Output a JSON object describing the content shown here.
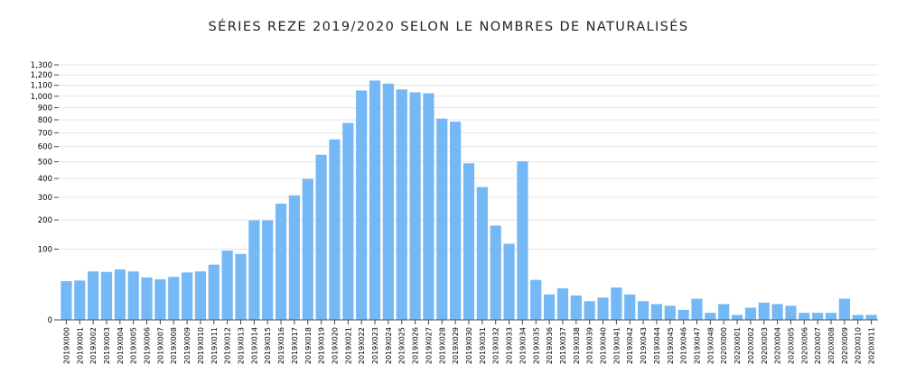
{
  "chart_data": {
    "type": "bar",
    "title": "SÉRIES REZE 2019/2020 SELON LE NOMBRES DE NATURALISÉS",
    "xlabel": "",
    "ylabel": "",
    "y_scale": "sqrt",
    "ylim": [
      0,
      1300
    ],
    "y_ticks": [
      0,
      100,
      200,
      300,
      400,
      500,
      600,
      700,
      800,
      900,
      1000,
      1100,
      1200,
      1300
    ],
    "y_tick_labels": [
      "0",
      "100",
      "200",
      "300",
      "400",
      "500",
      "600",
      "700",
      "800",
      "900",
      "1,000",
      "1,100",
      "1,200",
      "1,300"
    ],
    "grid": true,
    "bar_color": "#74b8f5",
    "categories": [
      "2019X000",
      "2019X001",
      "2019X002",
      "2019X003",
      "2019X004",
      "2019X005",
      "2019X006",
      "2019X007",
      "2019X008",
      "2019X009",
      "2019X010",
      "2019X011",
      "2019X012",
      "2019X013",
      "2019X014",
      "2019X015",
      "2019X016",
      "2019X017",
      "2019X018",
      "2019X019",
      "2019X020",
      "2019X021",
      "2019X022",
      "2019X023",
      "2019X024",
      "2019X025",
      "2019X026",
      "2019X027",
      "2019X028",
      "2019X029",
      "2019X030",
      "2019X031",
      "2019X032",
      "2019X033",
      "2019X034",
      "2019X035",
      "2019X036",
      "2019X037",
      "2019X038",
      "2019X039",
      "2019X040",
      "2019X041",
      "2019X042",
      "2019X043",
      "2019X044",
      "2019X045",
      "2019X046",
      "2019X047",
      "2019X048",
      "2020X000",
      "2020X001",
      "2020X002",
      "2020X003",
      "2020X004",
      "2020X005",
      "2020X006",
      "2020X007",
      "2020X008",
      "2020X009",
      "2020X010",
      "2020X011"
    ],
    "values": [
      30,
      31,
      47,
      46,
      51,
      47,
      36,
      33,
      37,
      45,
      47,
      61,
      96,
      87,
      198,
      198,
      270,
      310,
      397,
      545,
      651,
      775,
      1052,
      1145,
      1116,
      1062,
      1035,
      1027,
      810,
      786,
      490,
      353,
      178,
      116,
      503,
      32,
      13,
      20,
      12,
      7,
      10,
      21,
      13,
      7,
      5,
      4,
      2,
      9,
      1,
      5,
      0.5,
      3,
      6,
      5,
      4,
      1,
      1,
      1,
      9,
      0.5,
      0.5
    ]
  }
}
